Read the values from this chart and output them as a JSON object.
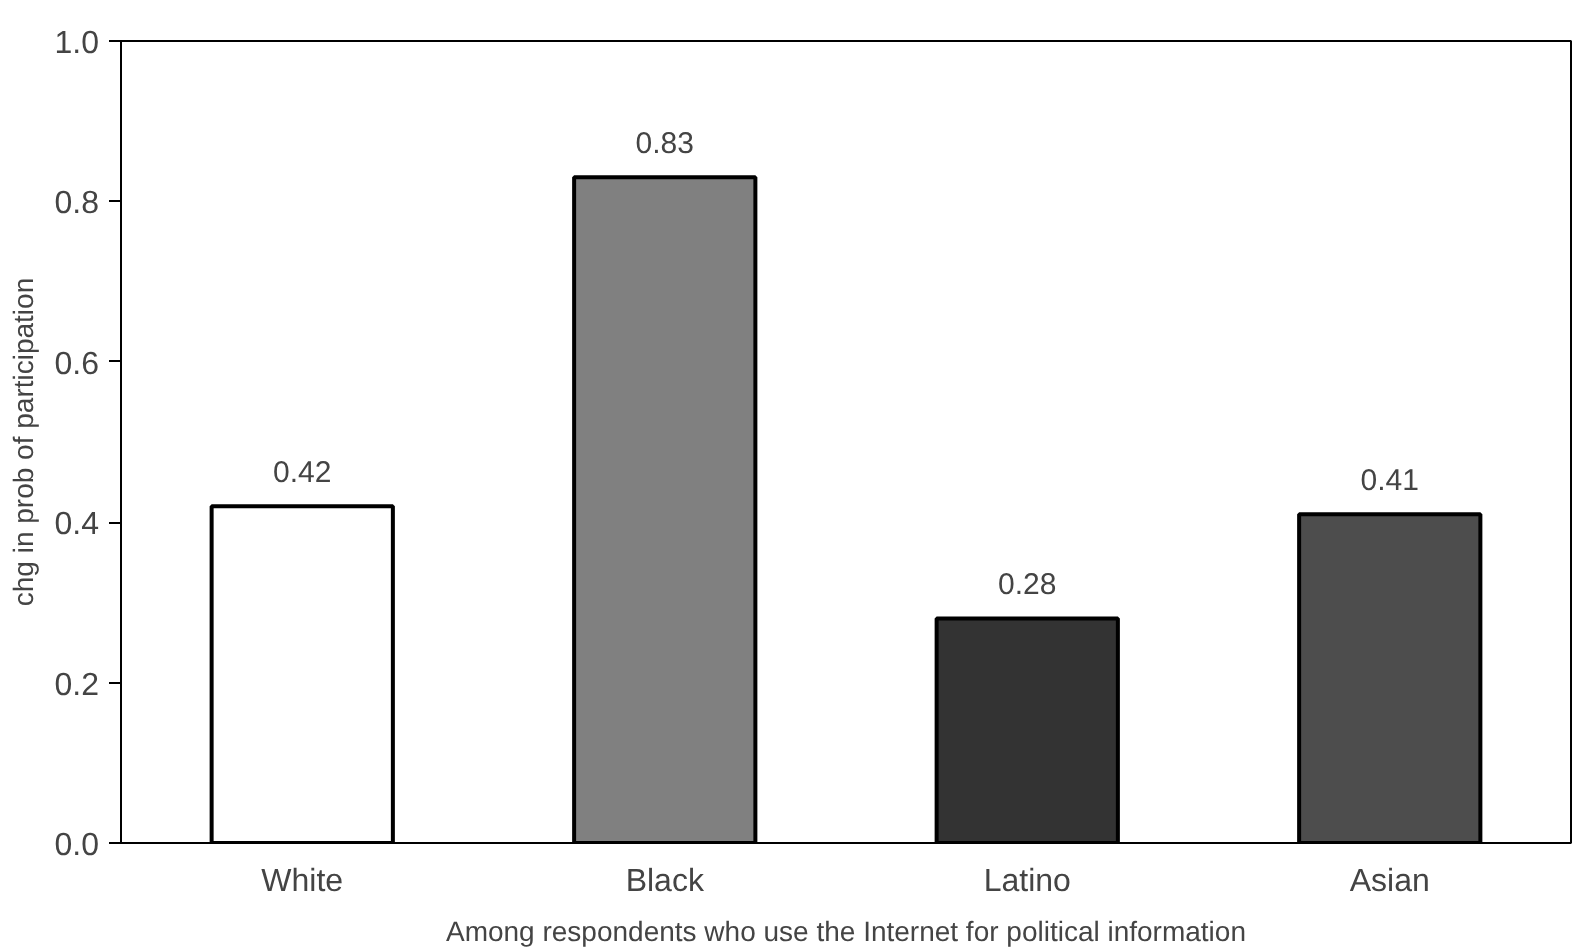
{
  "chart_data": {
    "type": "bar",
    "categories": [
      "White",
      "Black",
      "Latino",
      "Asian"
    ],
    "values": [
      0.42,
      0.83,
      0.28,
      0.41
    ],
    "colors": [
      "#ffffff",
      "#808080",
      "#333333",
      "#4d4d4d"
    ],
    "ylim": [
      0,
      1
    ],
    "yticks": [
      {
        "value": 0,
        "label": "0.0"
      },
      0.2,
      0.4,
      0.6,
      0.8,
      {
        "value": 1,
        "label": "1.0"
      }
    ],
    "ylabel": "chg in prob of participation",
    "xlabel": "Among respondents who use the Internet for political information",
    "data_labels": true,
    "grid": false
  }
}
